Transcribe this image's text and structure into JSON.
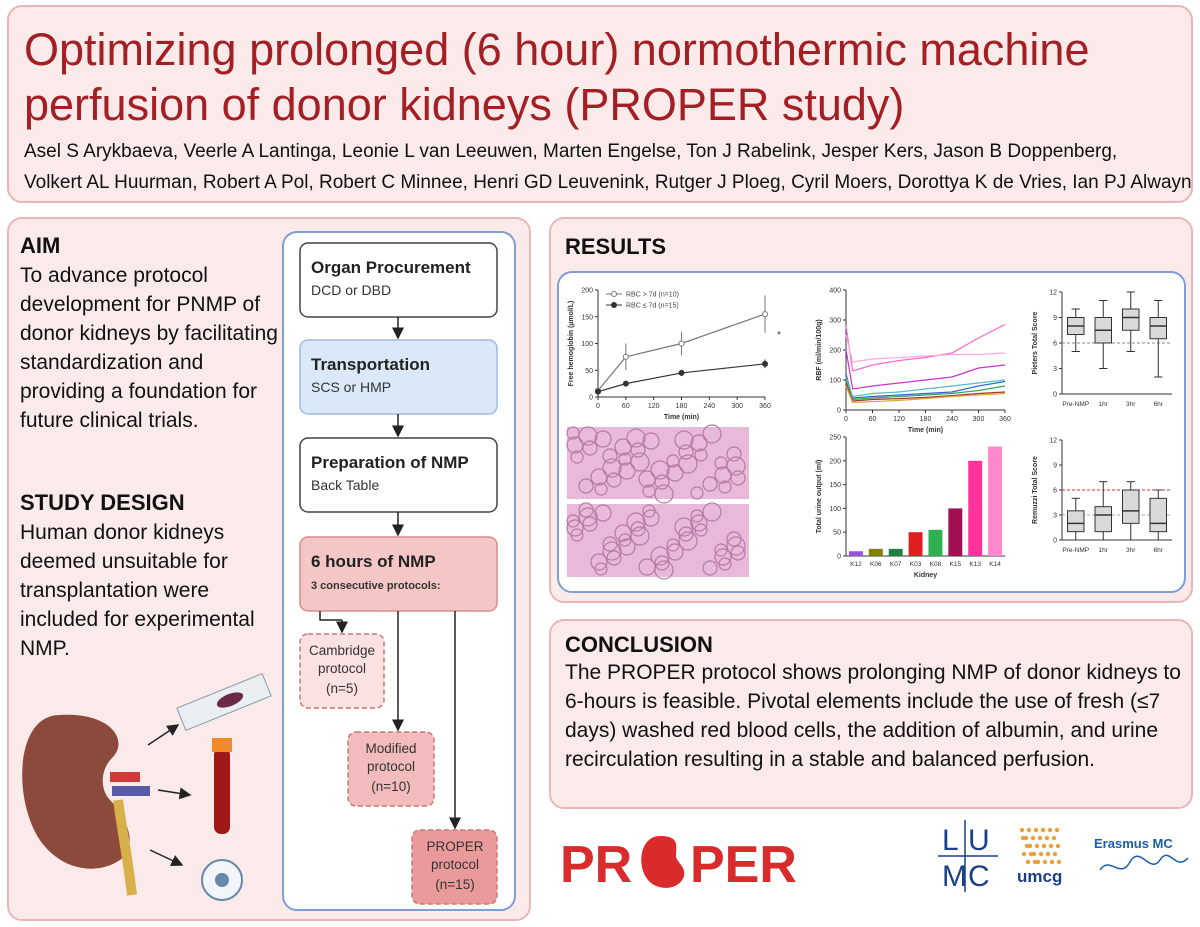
{
  "header": {
    "title": "Optimizing prolonged (6 hour) normothermic machine perfusion of donor kidneys (PROPER study)",
    "authors": [
      "Asel S Arykbaeva, Veerle A Lantinga, Leonie L van Leeuwen, Marten Engelse, Ton J Rabelink, Jesper Kers, Jason B Doppenberg,",
      "Volkert AL Huurman, Robert A Pol, Robert C Minnee, Henri GD Leuvenink, Rutger J Ploeg, Cyril Moers, Dorottya K de Vries, Ian PJ Alwayn"
    ]
  },
  "aim": {
    "heading": "AIM",
    "text": "To advance protocol development for PNMP of donor kidneys by facilitating standardization and providing a foundation for future clinical trials."
  },
  "study_design": {
    "heading": "STUDY DESIGN",
    "text": "Human donor kidneys deemed unsuitable for transplantation were included for experimental NMP."
  },
  "flow": {
    "steps": [
      {
        "title": "Organ Procurement",
        "subtitle": "DCD or DBD",
        "color": "#ffffff"
      },
      {
        "title": "Transportation",
        "subtitle": "SCS or HMP",
        "color": "#dbe8f8"
      },
      {
        "title": "Preparation of NMP",
        "subtitle": "Back Table",
        "color": "#ffffff"
      },
      {
        "title": "6 hours of NMP",
        "subtitle": "3 consecutive protocols:",
        "color": "#f5c6c6"
      }
    ],
    "protocols": [
      {
        "name": "Cambridge protocol",
        "n": "(n=5)",
        "color": "#fbe1e1"
      },
      {
        "name": "Modified protocol",
        "n": "(n=10)",
        "color": "#f2bcbc"
      },
      {
        "name": "PROPER protocol",
        "n": "(n=15)",
        "color": "#ea9a9a"
      }
    ]
  },
  "results": {
    "heading": "RESULTS",
    "charts": [
      {
        "type": "line",
        "y_label": "Free hemoglobin (µmol/L)",
        "x_label": "Time (min)",
        "x": [
          0,
          60,
          180,
          360
        ],
        "xlim": [
          0,
          360
        ],
        "xticks": [
          0,
          60,
          120,
          180,
          240,
          300,
          360
        ],
        "ylim": [
          0,
          200
        ],
        "yticks": [
          0,
          50,
          100,
          150,
          200
        ],
        "series": [
          {
            "name": "RBC > 7d (n=10)",
            "color": "#777777",
            "marker": "open",
            "values": [
              12,
              75,
              100,
              155
            ],
            "errors": [
              5,
              25,
              22,
              35
            ]
          },
          {
            "name": "RBC ≤ 7d (n=15)",
            "color": "#333333",
            "marker": "filled",
            "values": [
              10,
              25,
              45,
              62
            ],
            "errors": [
              3,
              5,
              6,
              8
            ]
          }
        ],
        "annotation": "*"
      },
      {
        "type": "line",
        "y_label": "RBF (ml/min/100g)",
        "x_label": "Time (min)",
        "x": [
          0,
          15,
          60,
          120,
          180,
          240,
          300,
          360
        ],
        "xlim": [
          0,
          360
        ],
        "xticks": [
          0,
          60,
          120,
          180,
          240,
          300,
          360
        ],
        "ylim": [
          0,
          400
        ],
        "yticks": [
          0,
          100,
          200,
          300,
          400
        ],
        "series": [
          {
            "color": "#ff66cc",
            "values": [
              280,
              130,
              150,
              165,
              175,
              190,
              240,
              285
            ]
          },
          {
            "color": "#ffaadd",
            "values": [
              250,
              160,
              170,
              175,
              180,
              185,
              185,
              190
            ]
          },
          {
            "color": "#cc33cc",
            "values": [
              200,
              70,
              80,
              90,
              100,
              110,
              140,
              150
            ]
          },
          {
            "color": "#3366cc",
            "values": [
              120,
              40,
              45,
              50,
              55,
              60,
              80,
              95
            ]
          },
          {
            "color": "#33aa55",
            "values": [
              100,
              35,
              40,
              45,
              50,
              55,
              65,
              80
            ]
          },
          {
            "color": "#aa3333",
            "values": [
              90,
              30,
              35,
              38,
              42,
              48,
              55,
              60
            ]
          },
          {
            "color": "#ddaa33",
            "values": [
              80,
              25,
              28,
              32,
              38,
              45,
              50,
              55
            ]
          },
          {
            "color": "#55bbcc",
            "values": [
              110,
              45,
              55,
              60,
              70,
              80,
              90,
              100
            ]
          }
        ]
      },
      {
        "type": "bar",
        "y_label": "Total urine output (ml)",
        "x_label": "Kidney",
        "categories": [
          "K12",
          "K06",
          "K07",
          "K03",
          "K08",
          "K15",
          "K13",
          "K14"
        ],
        "values": [
          10,
          15,
          15,
          50,
          55,
          100,
          200,
          230
        ],
        "colors": [
          "#a050e0",
          "#808000",
          "#208040",
          "#e02020",
          "#30b050",
          "#a01050",
          "#ff3399",
          "#ff88cc"
        ],
        "ylim": [
          0,
          250
        ],
        "yticks": [
          0,
          50,
          100,
          150,
          200,
          250
        ]
      },
      {
        "type": "box",
        "y_label": "Pieters Total Score",
        "categories": [
          "Pre-NMP",
          "1hr",
          "3hr",
          "6hr"
        ],
        "boxes": [
          [
            5,
            7,
            8,
            9,
            10
          ],
          [
            3,
            6,
            7.5,
            9,
            11
          ],
          [
            5,
            7.5,
            9,
            10,
            12
          ],
          [
            2,
            6.5,
            8,
            9,
            11
          ]
        ],
        "ylim": [
          0,
          12
        ],
        "yticks": [
          0,
          3,
          6,
          9,
          12
        ],
        "ref_lines": [
          {
            "value": 6,
            "color": "#888888"
          }
        ]
      },
      {
        "type": "box",
        "y_label": "Remuzzi Total Score",
        "categories": [
          "Pre-NMP",
          "1hr",
          "3hr",
          "6hr"
        ],
        "boxes": [
          [
            0,
            1,
            2,
            3.5,
            5
          ],
          [
            0,
            1,
            3,
            4,
            7
          ],
          [
            0,
            2,
            3.5,
            6,
            7
          ],
          [
            0,
            1,
            2,
            5,
            6
          ]
        ],
        "ylim": [
          0,
          12
        ],
        "yticks": [
          0,
          3,
          6,
          9,
          12
        ],
        "ref_lines": [
          {
            "value": 6,
            "color": "#e03030"
          },
          {
            "value": 3,
            "color": "#aaaaaa"
          }
        ]
      }
    ]
  },
  "conclusion": {
    "heading": "CONCLUSION",
    "text": "The PROPER protocol shows prolonging NMP of donor kidneys to 6-hours is feasible. Pivotal elements include the use of fresh (≤7 days) washed red blood cells, the addition of albumin, and urine recirculation resulting in a stable and balanced perfusion."
  },
  "logos": {
    "proper": [
      "PR",
      "PER"
    ],
    "lumc": [
      "L",
      "U",
      "M",
      "C"
    ],
    "umcg": "umcg",
    "erasmus": "Erasmus MC"
  }
}
